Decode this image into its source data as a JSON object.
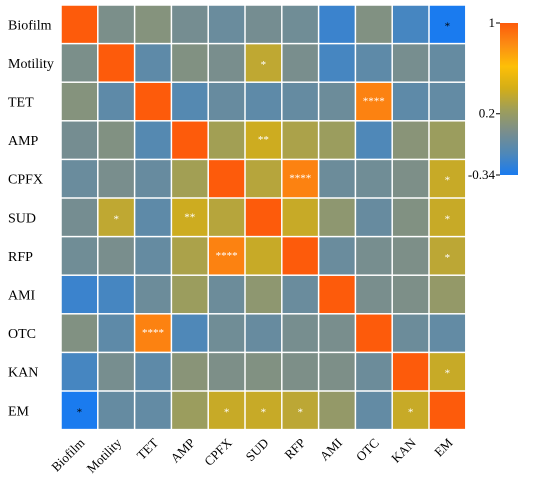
{
  "chart_data": {
    "type": "heatmap",
    "title": "",
    "xlabel": "",
    "ylabel": "",
    "rows": [
      "Biofilm",
      "Motility",
      "TET",
      "AMP",
      "CPFX",
      "SUD",
      "RFP",
      "AMI",
      "OTC",
      "KAN",
      "EM"
    ],
    "columns": [
      "Biofilm",
      "Motility",
      "TET",
      "AMP",
      "CPFX",
      "SUD",
      "RFP",
      "AMI",
      "OTC",
      "KAN",
      "EM"
    ],
    "values": [
      [
        1.0,
        0.05,
        0.1,
        0.02,
        -0.03,
        0.02,
        0.0,
        -0.22,
        0.08,
        -0.18,
        -0.34
      ],
      [
        0.05,
        1.0,
        -0.08,
        0.08,
        0.04,
        0.35,
        0.04,
        -0.18,
        -0.08,
        0.03,
        -0.05
      ],
      [
        0.1,
        -0.08,
        1.0,
        -0.12,
        -0.04,
        -0.08,
        -0.05,
        -0.02,
        0.85,
        -0.08,
        -0.06
      ],
      [
        0.02,
        0.08,
        -0.12,
        1.0,
        0.25,
        0.4,
        0.28,
        0.22,
        -0.15,
        0.12,
        0.22
      ],
      [
        -0.03,
        0.04,
        -0.04,
        0.25,
        1.0,
        0.32,
        0.85,
        -0.02,
        0.0,
        0.06,
        0.38
      ],
      [
        0.02,
        0.35,
        -0.08,
        0.4,
        0.32,
        1.0,
        0.38,
        0.15,
        -0.04,
        0.08,
        0.38
      ],
      [
        0.0,
        0.04,
        -0.05,
        0.28,
        0.85,
        0.38,
        1.0,
        -0.03,
        0.03,
        0.06,
        0.34
      ],
      [
        -0.22,
        -0.18,
        -0.02,
        0.22,
        -0.02,
        0.15,
        -0.03,
        1.0,
        0.04,
        0.06,
        0.18
      ],
      [
        0.08,
        -0.08,
        0.85,
        -0.15,
        0.0,
        -0.04,
        0.03,
        0.04,
        1.0,
        -0.02,
        -0.06
      ],
      [
        -0.18,
        0.03,
        -0.08,
        0.12,
        0.06,
        0.08,
        0.06,
        0.06,
        -0.02,
        1.0,
        0.38
      ],
      [
        -0.34,
        -0.05,
        -0.06,
        0.22,
        0.38,
        0.38,
        0.34,
        0.18,
        -0.06,
        0.38,
        1.0
      ]
    ],
    "annotations": [
      {
        "row": 0,
        "col": 10,
        "text": "*"
      },
      {
        "row": 1,
        "col": 5,
        "text": "*"
      },
      {
        "row": 2,
        "col": 8,
        "text": "****"
      },
      {
        "row": 3,
        "col": 5,
        "text": "**"
      },
      {
        "row": 4,
        "col": 6,
        "text": "****"
      },
      {
        "row": 4,
        "col": 10,
        "text": "*"
      },
      {
        "row": 5,
        "col": 1,
        "text": "*"
      },
      {
        "row": 5,
        "col": 3,
        "text": "**"
      },
      {
        "row": 5,
        "col": 10,
        "text": "*"
      },
      {
        "row": 6,
        "col": 4,
        "text": "****"
      },
      {
        "row": 6,
        "col": 10,
        "text": "*"
      },
      {
        "row": 8,
        "col": 2,
        "text": "****"
      },
      {
        "row": 9,
        "col": 10,
        "text": "*"
      },
      {
        "row": 10,
        "col": 0,
        "text": "*"
      },
      {
        "row": 10,
        "col": 4,
        "text": "*"
      },
      {
        "row": 10,
        "col": 5,
        "text": "*"
      },
      {
        "row": 10,
        "col": 6,
        "text": "*"
      },
      {
        "row": 10,
        "col": 9,
        "text": "*"
      }
    ],
    "colorbar": {
      "min": -0.34,
      "max": 1,
      "ticks": [
        1,
        0.2,
        -0.34
      ],
      "tick_labels": [
        "1",
        "0.2",
        "-0.34"
      ],
      "colors": [
        "#1a7bef",
        "#4f88b8",
        "#7a8e8c",
        "#9e9e5a",
        "#d4ae17",
        "#fdbf07",
        "#fc8d13",
        "#fd5b0b"
      ]
    },
    "legend": "right",
    "grid": true
  }
}
